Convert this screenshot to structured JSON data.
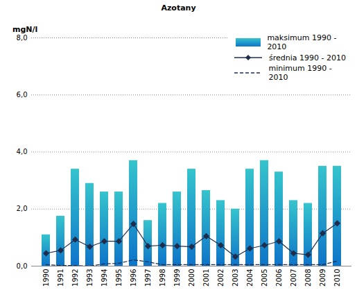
{
  "chart_data": {
    "type": "bar",
    "title": "Azotany",
    "y_label": "mgN/l",
    "categories": [
      "1990",
      "1991",
      "1992",
      "1993",
      "1994",
      "1995",
      "1996",
      "1997",
      "1998",
      "1999",
      "2000",
      "2001",
      "2002",
      "2003",
      "2004",
      "2005",
      "2006",
      "2007",
      "2008",
      "2009",
      "2010"
    ],
    "series": [
      {
        "name": "maksimum 1990 - 2010",
        "type": "bar",
        "color": "#1ea0d5",
        "values": [
          1.1,
          1.75,
          3.4,
          2.9,
          2.6,
          2.6,
          3.7,
          1.6,
          2.2,
          2.6,
          3.4,
          2.65,
          2.3,
          2.0,
          3.4,
          3.7,
          3.3,
          2.3,
          2.2,
          3.5,
          3.5
        ]
      },
      {
        "name": "średnia 1990 - 2010",
        "type": "line",
        "color": "#1f2d4d",
        "marker": "diamond",
        "line_style": "solid",
        "values": [
          0.45,
          0.55,
          0.93,
          0.68,
          0.87,
          0.87,
          1.48,
          0.7,
          0.73,
          0.7,
          0.68,
          1.05,
          0.73,
          0.33,
          0.62,
          0.73,
          0.87,
          0.45,
          0.4,
          1.15,
          1.5
        ]
      },
      {
        "name": "minimum 1990 - 2010",
        "type": "line",
        "color": "#1f2d4d",
        "marker": "none",
        "line_style": "dashed",
        "values": [
          0.05,
          0.02,
          0.02,
          0.0,
          0.08,
          0.1,
          0.22,
          0.15,
          0.05,
          0.05,
          0.05,
          0.05,
          0.05,
          0.05,
          0.05,
          0.05,
          0.05,
          0.05,
          0.05,
          0.05,
          0.18
        ]
      }
    ],
    "ylim": [
      0,
      8
    ],
    "yticks": [
      {
        "value": 0,
        "label": "0,0"
      },
      {
        "value": 2,
        "label": "2,0"
      },
      {
        "value": 4,
        "label": "4,0"
      },
      {
        "value": 6,
        "label": "6,0"
      },
      {
        "value": 8,
        "label": "8,0"
      }
    ],
    "grid": true,
    "legend": "top-right"
  }
}
